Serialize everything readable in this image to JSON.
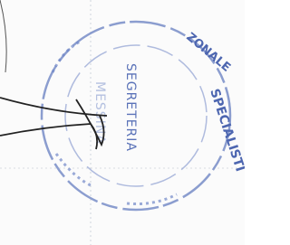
{
  "stamp": {
    "top_text": "ZONALE",
    "side_text": "SPECIALISTI",
    "center_lines": [
      "SEGRETERIA",
      "MESSINA"
    ]
  }
}
